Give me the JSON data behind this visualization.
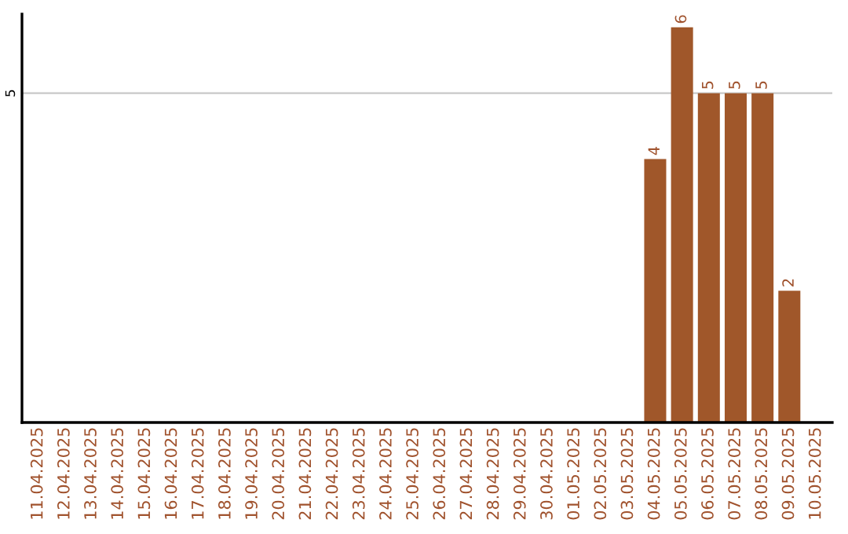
{
  "chart_data": {
    "type": "bar",
    "categories": [
      "11.04.2025",
      "12.04.2025",
      "13.04.2025",
      "14.04.2025",
      "15.04.2025",
      "16.04.2025",
      "17.04.2025",
      "18.04.2025",
      "19.04.2025",
      "20.04.2025",
      "21.04.2025",
      "22.04.2025",
      "23.04.2025",
      "24.04.2025",
      "25.04.2025",
      "26.04.2025",
      "27.04.2025",
      "28.04.2025",
      "29.04.2025",
      "30.04.2025",
      "01.05.2025",
      "02.05.2025",
      "03.05.2025",
      "04.05.2025",
      "05.05.2025",
      "06.05.2025",
      "07.05.2025",
      "08.05.2025",
      "09.05.2025",
      "10.05.2025"
    ],
    "values": [
      null,
      null,
      null,
      null,
      null,
      null,
      null,
      null,
      null,
      null,
      null,
      null,
      null,
      null,
      null,
      null,
      null,
      null,
      null,
      null,
      null,
      null,
      null,
      4,
      6,
      5,
      5,
      5,
      2,
      null
    ],
    "color": "#a0572a",
    "ylim": [
      0,
      6.2
    ],
    "yticks": [
      5
    ],
    "grid": "y",
    "data_labels": true
  }
}
